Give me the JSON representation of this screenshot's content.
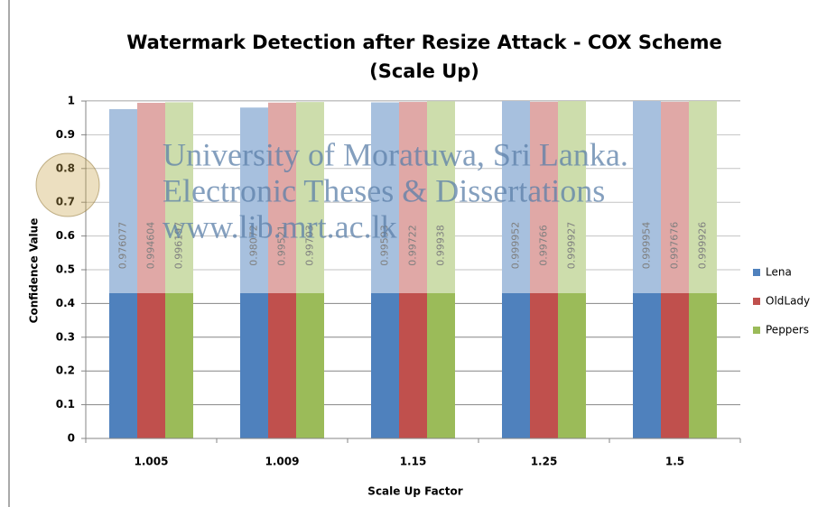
{
  "chart_data": {
    "type": "bar",
    "title": "Watermark Detection  after Resize Attack - COX Scheme",
    "subtitle": "(Scale Up)",
    "x_label": "Scale Up Factor",
    "y_label": "Confidence Value",
    "categories": [
      "1.005",
      "1.009",
      "1.15",
      "1.25",
      "1.5"
    ],
    "series": [
      {
        "name": "Lena",
        "color": "#4f81bd",
        "values": [
          0.976077,
          0.98072,
          0.99593,
          0.999952,
          0.999954
        ]
      },
      {
        "name": "OldLady",
        "color": "#c0504d",
        "values": [
          0.994604,
          0.99521,
          0.99722,
          0.99766,
          0.997676
        ]
      },
      {
        "name": "Peppers",
        "color": "#9bbb59",
        "values": [
          0.996197,
          0.99703,
          0.99938,
          0.999927,
          0.999926
        ]
      }
    ],
    "ylim": [
      0,
      1
    ],
    "yticks": [
      0,
      0.1,
      0.2,
      0.3,
      0.4,
      0.5,
      0.6,
      0.7,
      0.8,
      0.9,
      1
    ],
    "grid": true,
    "legend": "right",
    "watermark": [
      "University of Moratuwa, Sri Lanka.",
      "Electronic Theses & Dissertations",
      "www.lib.mrt.ac.lk"
    ]
  }
}
